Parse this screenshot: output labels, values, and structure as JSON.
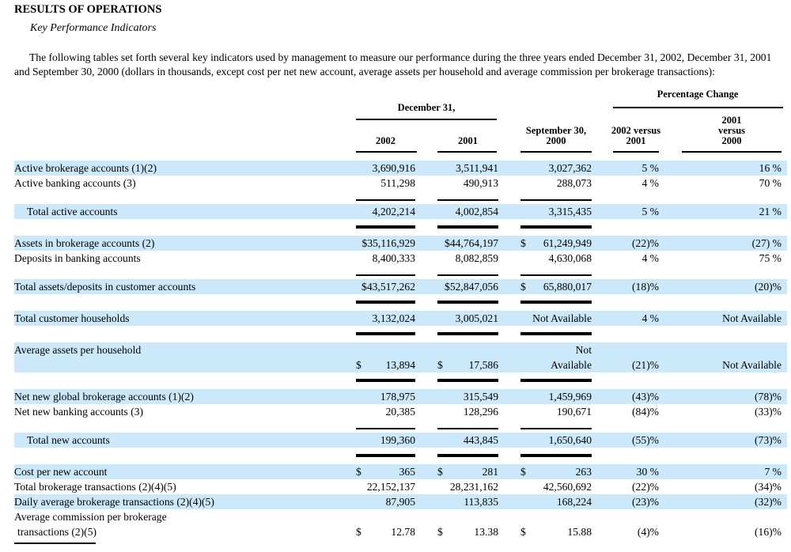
{
  "page": {
    "title": "RESULTS OF OPERATIONS",
    "subtitle": "Key Performance Indicators",
    "intro": "The following tables set forth several key indicators used by management to measure our performance during the three years ended December 31, 2002, December 31, 2001 and September 30, 2000 (dollars in thousands, except cost per net new account, average assets per household and average commission per brokerage transactions):"
  },
  "colors": {
    "row_highlight": "#cbe9fa",
    "text": "#000000"
  },
  "table": {
    "header": {
      "group_dec": "December 31,",
      "group_pct": "Percentage Change",
      "col_2002": "2002",
      "col_2001": "2001",
      "col_sept": [
        "September 30,",
        "2000"
      ],
      "col_0201": [
        "2002 versus",
        "2001"
      ],
      "col_0100": [
        "2001",
        "versus",
        "2000"
      ]
    },
    "rows": [
      {
        "type": "data",
        "shade": true,
        "label": "Active brokerage accounts (1)(2)",
        "cells": [
          {
            "v": "3,690,916"
          },
          {
            "v": "3,511,941"
          },
          {
            "v": "3,027,362"
          },
          {
            "v": "5 %"
          },
          {
            "v": "16 %"
          }
        ]
      },
      {
        "type": "data",
        "shade": false,
        "label": "Active banking accounts (3)",
        "cells": [
          {
            "v": "511,298"
          },
          {
            "v": "490,913"
          },
          {
            "v": "288,073"
          },
          {
            "v": "4 %"
          },
          {
            "v": "70 %"
          }
        ]
      },
      {
        "type": "spacer",
        "line": "thin"
      },
      {
        "type": "data",
        "shade": true,
        "indent": true,
        "label": "Total active accounts",
        "cells": [
          {
            "v": "4,202,214"
          },
          {
            "v": "4,002,854"
          },
          {
            "v": "3,315,435"
          },
          {
            "v": "5 %"
          },
          {
            "v": "21 %"
          }
        ]
      },
      {
        "type": "spacer",
        "line": "thick"
      },
      {
        "type": "data",
        "shade": true,
        "label": "Assets in brokerage accounts (2)",
        "cells": [
          {
            "v": "$35,116,929"
          },
          {
            "v": "$44,764,197"
          },
          {
            "d": "$",
            "v": "61,249,949"
          },
          {
            "v": "(22)%"
          },
          {
            "v": "(27) %"
          }
        ]
      },
      {
        "type": "data",
        "shade": false,
        "label": "Deposits in banking accounts",
        "cells": [
          {
            "v": "8,400,333"
          },
          {
            "v": "8,082,859"
          },
          {
            "v": "4,630,068"
          },
          {
            "v": "4 %"
          },
          {
            "v": "75 %"
          }
        ]
      },
      {
        "type": "spacer",
        "line": "thin"
      },
      {
        "type": "data",
        "shade": true,
        "label": "Total assets/deposits in customer accounts",
        "cells": [
          {
            "v": "$43,517,262"
          },
          {
            "v": "$52,847,056"
          },
          {
            "d": "$",
            "v": "65,880,017"
          },
          {
            "v": "(18)%"
          },
          {
            "v": "(20)%"
          }
        ]
      },
      {
        "type": "spacer",
        "line": "thick"
      },
      {
        "type": "data",
        "shade": true,
        "label": "Total customer households",
        "cells": [
          {
            "v": "3,132,024"
          },
          {
            "v": "3,005,021"
          },
          {
            "v": "Not Available"
          },
          {
            "v": "4 %"
          },
          {
            "v": "Not Available"
          }
        ]
      },
      {
        "type": "spacer",
        "line": "thick"
      },
      {
        "type": "data2",
        "shade": true,
        "lines": [
          {
            "label": "Average assets per household",
            "cells": [
              null,
              null,
              {
                "v": "Not"
              },
              null,
              null
            ]
          },
          {
            "label": "",
            "cells": [
              {
                "d": "$",
                "v": "13,894"
              },
              {
                "d": "$",
                "v": "17,586"
              },
              {
                "v": "Available"
              },
              {
                "v": "(21)%"
              },
              {
                "v": "Not Available"
              }
            ]
          }
        ]
      },
      {
        "type": "spacer",
        "line": "thick"
      },
      {
        "type": "data",
        "shade": true,
        "label": "Net new global brokerage accounts (1)(2)",
        "cells": [
          {
            "v": "178,975"
          },
          {
            "v": "315,549"
          },
          {
            "v": "1,459,969"
          },
          {
            "v": "(43)%"
          },
          {
            "v": "(78)%"
          }
        ]
      },
      {
        "type": "data",
        "shade": false,
        "label": "Net new banking accounts (3)",
        "cells": [
          {
            "v": "20,385"
          },
          {
            "v": "128,296"
          },
          {
            "v": "190,671"
          },
          {
            "v": "(84)%"
          },
          {
            "v": "(33)%"
          }
        ]
      },
      {
        "type": "spacer",
        "line": "thin"
      },
      {
        "type": "data",
        "shade": true,
        "indent": true,
        "label": "Total new accounts",
        "cells": [
          {
            "v": "199,360"
          },
          {
            "v": "443,845"
          },
          {
            "v": "1,650,640"
          },
          {
            "v": "(55)%"
          },
          {
            "v": "(73)%"
          }
        ]
      },
      {
        "type": "spacer",
        "line": "thick"
      },
      {
        "type": "data",
        "shade": true,
        "label": "Cost per new account",
        "cells": [
          {
            "d": "$",
            "v": "365"
          },
          {
            "d": "$",
            "v": "281"
          },
          {
            "d": "$",
            "v": "263"
          },
          {
            "v": "30 %"
          },
          {
            "v": "7 %"
          }
        ]
      },
      {
        "type": "data",
        "shade": false,
        "label": "Total brokerage transactions (2)(4)(5)",
        "cells": [
          {
            "v": "22,152,137"
          },
          {
            "v": "28,231,162"
          },
          {
            "v": "42,560,692"
          },
          {
            "v": "(22)%"
          },
          {
            "v": "(34)%"
          }
        ]
      },
      {
        "type": "data",
        "shade": true,
        "label": "Daily average brokerage transactions (2)(4)(5)",
        "cells": [
          {
            "v": "87,905"
          },
          {
            "v": "113,835"
          },
          {
            "v": "168,224"
          },
          {
            "v": "(23)%"
          },
          {
            "v": "(32)%"
          }
        ]
      },
      {
        "type": "data2",
        "shade": false,
        "lines": [
          {
            "label": "Average commission per brokerage",
            "cells": [
              null,
              null,
              null,
              null,
              null
            ]
          },
          {
            "label": "transactions (2)(5)",
            "label_indent": true,
            "cells": [
              {
                "d": "$",
                "v": "12.78"
              },
              {
                "d": "$",
                "v": "13.38"
              },
              {
                "d": "$",
                "v": "15.88"
              },
              {
                "v": "(4)%"
              },
              {
                "v": "(16)%"
              }
            ]
          }
        ]
      }
    ]
  }
}
